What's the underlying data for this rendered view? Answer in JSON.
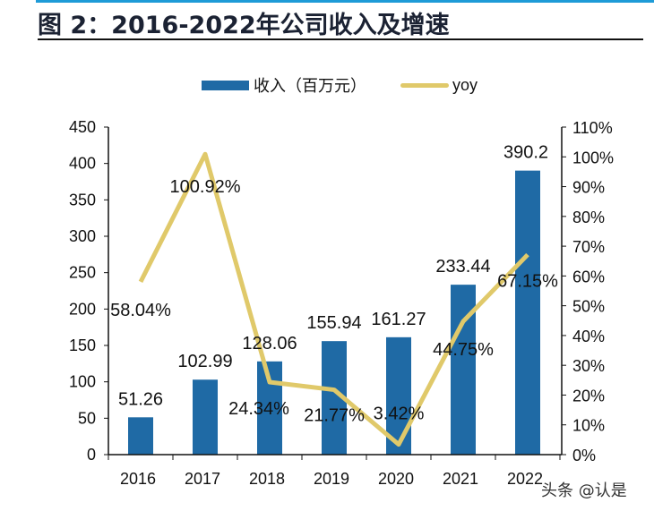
{
  "title": "图 2：2016-2022年公司收入及增速",
  "watermark": "头条 @认是",
  "chart_data": {
    "type": "bar+line",
    "categories": [
      "2016",
      "2017",
      "2018",
      "2019",
      "2020",
      "2021",
      "2022"
    ],
    "series": [
      {
        "name": "收入（百万元）",
        "type": "bar",
        "axis": "left",
        "color": "#1f6aa5",
        "values": [
          51.26,
          102.99,
          128.06,
          155.94,
          161.27,
          233.44,
          390.2
        ],
        "labels": [
          "51.26",
          "102.99",
          "128.06",
          "155.94",
          "161.27",
          "233.44",
          "390.2"
        ]
      },
      {
        "name": "yoy",
        "type": "line",
        "axis": "right",
        "color": "#e0c96a",
        "values": [
          58.04,
          100.92,
          24.34,
          21.77,
          3.42,
          44.75,
          67.15
        ],
        "labels": [
          "58.04%",
          "100.92%",
          "24.34%",
          "21.77%",
          "3.42%",
          "44.75%",
          "67.15%"
        ]
      }
    ],
    "ylim_left": [
      0,
      450
    ],
    "yticks_left": [
      "0",
      "50",
      "100",
      "150",
      "200",
      "250",
      "300",
      "350",
      "400",
      "450"
    ],
    "ylim_right": [
      0,
      110
    ],
    "yticks_right": [
      "0%",
      "10%",
      "20%",
      "30%",
      "40%",
      "50%",
      "60%",
      "70%",
      "80%",
      "90%",
      "100%",
      "110%"
    ],
    "legend": "top-center",
    "grid": false
  }
}
